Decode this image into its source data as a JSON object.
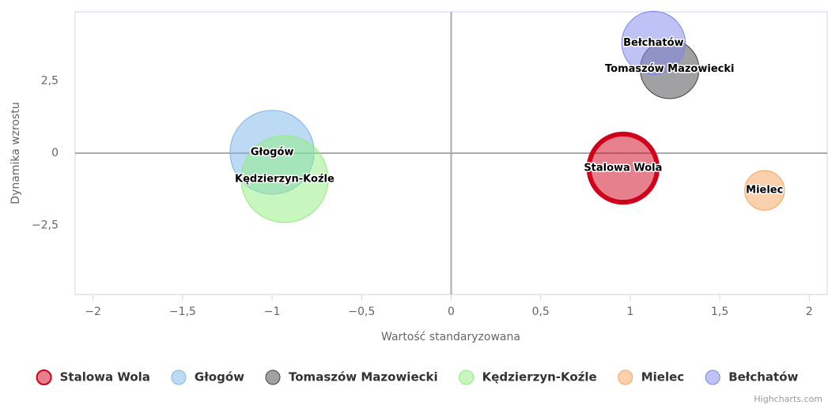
{
  "chart_data": {
    "type": "bubble",
    "xlabel": "Wartość standaryzowana",
    "ylabel": "Dynamika wzrostu",
    "xlim": [
      -2.1,
      2.1
    ],
    "ylim": [
      -4.9,
      4.9
    ],
    "xticks": [
      {
        "value": -2,
        "label": "−2"
      },
      {
        "value": -1.5,
        "label": "−1,5"
      },
      {
        "value": -1,
        "label": "−1"
      },
      {
        "value": -0.5,
        "label": "−0,5"
      },
      0,
      {
        "value": 0.5,
        "label": "0,5"
      },
      1,
      {
        "value": 1.5,
        "label": "1,5"
      },
      2
    ],
    "yticks": [
      {
        "value": -2.5,
        "label": "−2,5"
      },
      0,
      {
        "value": 2.5,
        "label": "2,5"
      }
    ],
    "legend": "bottom",
    "credits": "Highcharts.com",
    "series": [
      {
        "name": "Stalowa Wola",
        "color": "#d0021b",
        "selected": true,
        "x": [
          0.96
        ],
        "values": [
          -0.52
        ],
        "z": [
          18.5
        ]
      },
      {
        "name": "Głogów",
        "color": "#7cb5ec",
        "x": [
          -1.0
        ],
        "values": [
          0.03
        ],
        "z": [
          28
        ]
      },
      {
        "name": "Tomaszów Mazowiecki",
        "color": "#434348",
        "x": [
          1.22
        ],
        "values": [
          2.91
        ],
        "z": [
          13.7
        ]
      },
      {
        "name": "Kędzierzyn-Koźle",
        "color": "#90ed7d",
        "x": [
          -0.93
        ],
        "values": [
          -0.9
        ],
        "z": [
          30
        ]
      },
      {
        "name": "Mielec",
        "color": "#f7a35c",
        "x": [
          1.75
        ],
        "values": [
          -1.29
        ],
        "z": [
          6.25
        ]
      },
      {
        "name": "Bełchatów",
        "color": "#8085e9",
        "x": [
          1.13
        ],
        "values": [
          3.82
        ],
        "z": [
          16
        ]
      }
    ]
  }
}
